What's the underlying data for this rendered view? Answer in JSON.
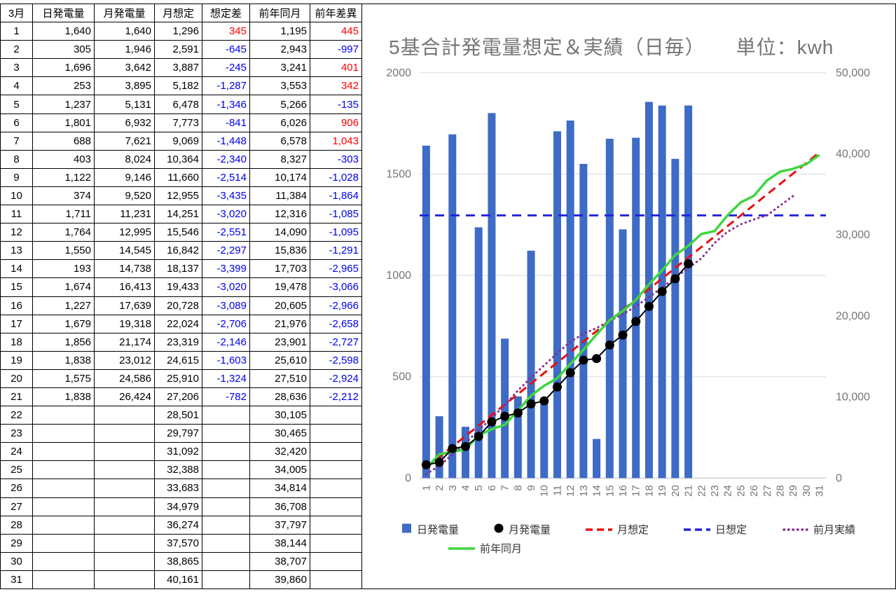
{
  "colors": {
    "negative": "#0000EE",
    "positive": "#FF0000",
    "axis_text": "#757575",
    "grid": "#D9D9D9",
    "grid_zero": "#BDBDBD"
  },
  "table": {
    "headers": [
      "3月",
      "日発電量",
      "月発電量",
      "月想定",
      "想定差",
      "前年同月",
      "前年差異"
    ],
    "rows": [
      [
        "1",
        "1,640",
        "1,640",
        "1,296",
        "345",
        "1,195",
        "445"
      ],
      [
        "2",
        "305",
        "1,946",
        "2,591",
        "-645",
        "2,943",
        "-997"
      ],
      [
        "3",
        "1,696",
        "3,642",
        "3,887",
        "-245",
        "3,241",
        "401"
      ],
      [
        "4",
        "253",
        "3,895",
        "5,182",
        "-1,287",
        "3,553",
        "342"
      ],
      [
        "5",
        "1,237",
        "5,131",
        "6,478",
        "-1,346",
        "5,266",
        "-135"
      ],
      [
        "6",
        "1,801",
        "6,932",
        "7,773",
        "-841",
        "6,026",
        "906"
      ],
      [
        "7",
        "688",
        "7,621",
        "9,069",
        "-1,448",
        "6,578",
        "1,043"
      ],
      [
        "8",
        "403",
        "8,024",
        "10,364",
        "-2,340",
        "8,327",
        "-303"
      ],
      [
        "9",
        "1,122",
        "9,146",
        "11,660",
        "-2,514",
        "10,174",
        "-1,028"
      ],
      [
        "10",
        "374",
        "9,520",
        "12,955",
        "-3,435",
        "11,384",
        "-1,864"
      ],
      [
        "11",
        "1,711",
        "11,231",
        "14,251",
        "-3,020",
        "12,316",
        "-1,085"
      ],
      [
        "12",
        "1,764",
        "12,995",
        "15,546",
        "-2,551",
        "14,090",
        "-1,095"
      ],
      [
        "13",
        "1,550",
        "14,545",
        "16,842",
        "-2,297",
        "15,836",
        "-1,291"
      ],
      [
        "14",
        "193",
        "14,738",
        "18,137",
        "-3,399",
        "17,703",
        "-2,965"
      ],
      [
        "15",
        "1,674",
        "16,413",
        "19,433",
        "-3,020",
        "19,478",
        "-3,066"
      ],
      [
        "16",
        "1,227",
        "17,639",
        "20,728",
        "-3,089",
        "20,605",
        "-2,966"
      ],
      [
        "17",
        "1,679",
        "19,318",
        "22,024",
        "-2,706",
        "21,976",
        "-2,658"
      ],
      [
        "18",
        "1,856",
        "21,174",
        "23,319",
        "-2,146",
        "23,901",
        "-2,727"
      ],
      [
        "19",
        "1,838",
        "23,012",
        "24,615",
        "-1,603",
        "25,610",
        "-2,598"
      ],
      [
        "20",
        "1,575",
        "24,586",
        "25,910",
        "-1,324",
        "27,510",
        "-2,924"
      ],
      [
        "21",
        "1,838",
        "26,424",
        "27,206",
        "-782",
        "28,636",
        "-2,212"
      ],
      [
        "22",
        "",
        "",
        "28,501",
        "",
        "30,105",
        ""
      ],
      [
        "23",
        "",
        "",
        "29,797",
        "",
        "30,465",
        ""
      ],
      [
        "24",
        "",
        "",
        "31,092",
        "",
        "32,420",
        ""
      ],
      [
        "25",
        "",
        "",
        "32,388",
        "",
        "34,005",
        ""
      ],
      [
        "26",
        "",
        "",
        "33,683",
        "",
        "34,814",
        ""
      ],
      [
        "27",
        "",
        "",
        "34,979",
        "",
        "36,708",
        ""
      ],
      [
        "28",
        "",
        "",
        "36,274",
        "",
        "37,797",
        ""
      ],
      [
        "29",
        "",
        "",
        "37,570",
        "",
        "38,144",
        ""
      ],
      [
        "30",
        "",
        "",
        "38,865",
        "",
        "38,707",
        ""
      ],
      [
        "31",
        "",
        "",
        "40,161",
        "",
        "39,860",
        ""
      ]
    ]
  },
  "chart": {
    "title": "5基合計発電量想定＆実績（日毎）　　単位：kwh",
    "legend_rows": [
      [
        {
          "key": "daily-bar",
          "label": "日発電量",
          "swatch": "square",
          "color": "#3D6BC5"
        },
        {
          "key": "monthly-dot",
          "label": "月発電量",
          "swatch": "dot",
          "color": "#000000"
        },
        {
          "key": "monthly-expected",
          "label": "月想定",
          "swatch": "dash",
          "color": "#E81010"
        },
        {
          "key": "daily-expected",
          "label": "日想定",
          "swatch": "dash",
          "color": "#2222DD"
        },
        {
          "key": "prev-month",
          "label": "前月実績",
          "swatch": "dots",
          "color": "#8B2D8F"
        }
      ],
      [
        {
          "key": "prev-year",
          "label": "前年同月",
          "swatch": "line",
          "color": "#3FD63F"
        }
      ]
    ]
  },
  "chart_data": {
    "type": "combo",
    "title": "5基合計発電量想定＆実績（日毎）　単位：kwh",
    "x": [
      "1",
      "2",
      "3",
      "4",
      "5",
      "6",
      "7",
      "8",
      "9",
      "10",
      "11",
      "12",
      "13",
      "14",
      "15",
      "16",
      "17",
      "18",
      "19",
      "20",
      "21",
      "22",
      "23",
      "24",
      "25",
      "26",
      "27",
      "28",
      "29",
      "30",
      "31"
    ],
    "left_axis": {
      "min": 0,
      "max": 2000,
      "ticks": [
        "0",
        "500",
        "1000",
        "1500",
        "2000"
      ]
    },
    "right_axis": {
      "min": 0,
      "max": 50000,
      "ticks": [
        "0",
        "10,000",
        "20,000",
        "30,000",
        "40,000",
        "50,000"
      ]
    },
    "grid": true,
    "legend_position": "bottom",
    "series": [
      {
        "key": "daily-bars",
        "name": "日発電量",
        "type": "bar",
        "axis": "left",
        "color": "#3D6BC5",
        "values": [
          1640,
          305,
          1696,
          253,
          1237,
          1801,
          688,
          403,
          1122,
          374,
          1711,
          1764,
          1550,
          193,
          1674,
          1227,
          1679,
          1856,
          1838,
          1575,
          1838
        ]
      },
      {
        "key": "daily-expected-line",
        "name": "日想定",
        "type": "dashed-hline",
        "axis": "left",
        "color": "#2222DD",
        "value": 1296
      },
      {
        "key": "monthly-expected-line",
        "name": "月想定",
        "type": "dashed-line",
        "axis": "right",
        "color": "#E81010",
        "values": [
          1296,
          2591,
          3887,
          5182,
          6478,
          7773,
          9069,
          10364,
          11660,
          12955,
          14251,
          15546,
          16842,
          18137,
          19433,
          20728,
          22024,
          23319,
          24615,
          25910,
          27206,
          28501,
          29797,
          31092,
          32388,
          33683,
          34979,
          36274,
          37570,
          38865,
          40161
        ]
      },
      {
        "key": "prev-month-line",
        "name": "前月実績",
        "type": "dotted-line",
        "axis": "right",
        "color": "#8B2D8F",
        "values": [
          500,
          1500,
          2900,
          4300,
          5900,
          7400,
          9000,
          10800,
          12400,
          13900,
          15400,
          16800,
          17800,
          18500,
          19400,
          20200,
          21200,
          22300,
          23500,
          24700,
          25900,
          27100,
          29000,
          30400,
          31300,
          31900,
          32400,
          33600,
          34800
        ]
      },
      {
        "key": "prev-year-line",
        "name": "前年同月",
        "type": "line",
        "axis": "right",
        "color": "#3FD63F",
        "values": [
          1195,
          2943,
          3241,
          3553,
          5266,
          6026,
          6578,
          8327,
          10174,
          11384,
          12316,
          14090,
          15836,
          17703,
          19478,
          20605,
          21976,
          23901,
          25610,
          27510,
          28636,
          30105,
          30465,
          32420,
          34005,
          34814,
          36708,
          37797,
          38144,
          38707,
          39860
        ]
      },
      {
        "key": "monthly-dots",
        "name": "月発電量",
        "type": "dots",
        "axis": "right",
        "color": "#000000",
        "values": [
          1640,
          1946,
          3642,
          3895,
          5131,
          6932,
          7621,
          8024,
          9146,
          9520,
          11231,
          12995,
          14545,
          14738,
          16413,
          17639,
          19318,
          21174,
          23012,
          24586,
          26424
        ]
      }
    ]
  }
}
